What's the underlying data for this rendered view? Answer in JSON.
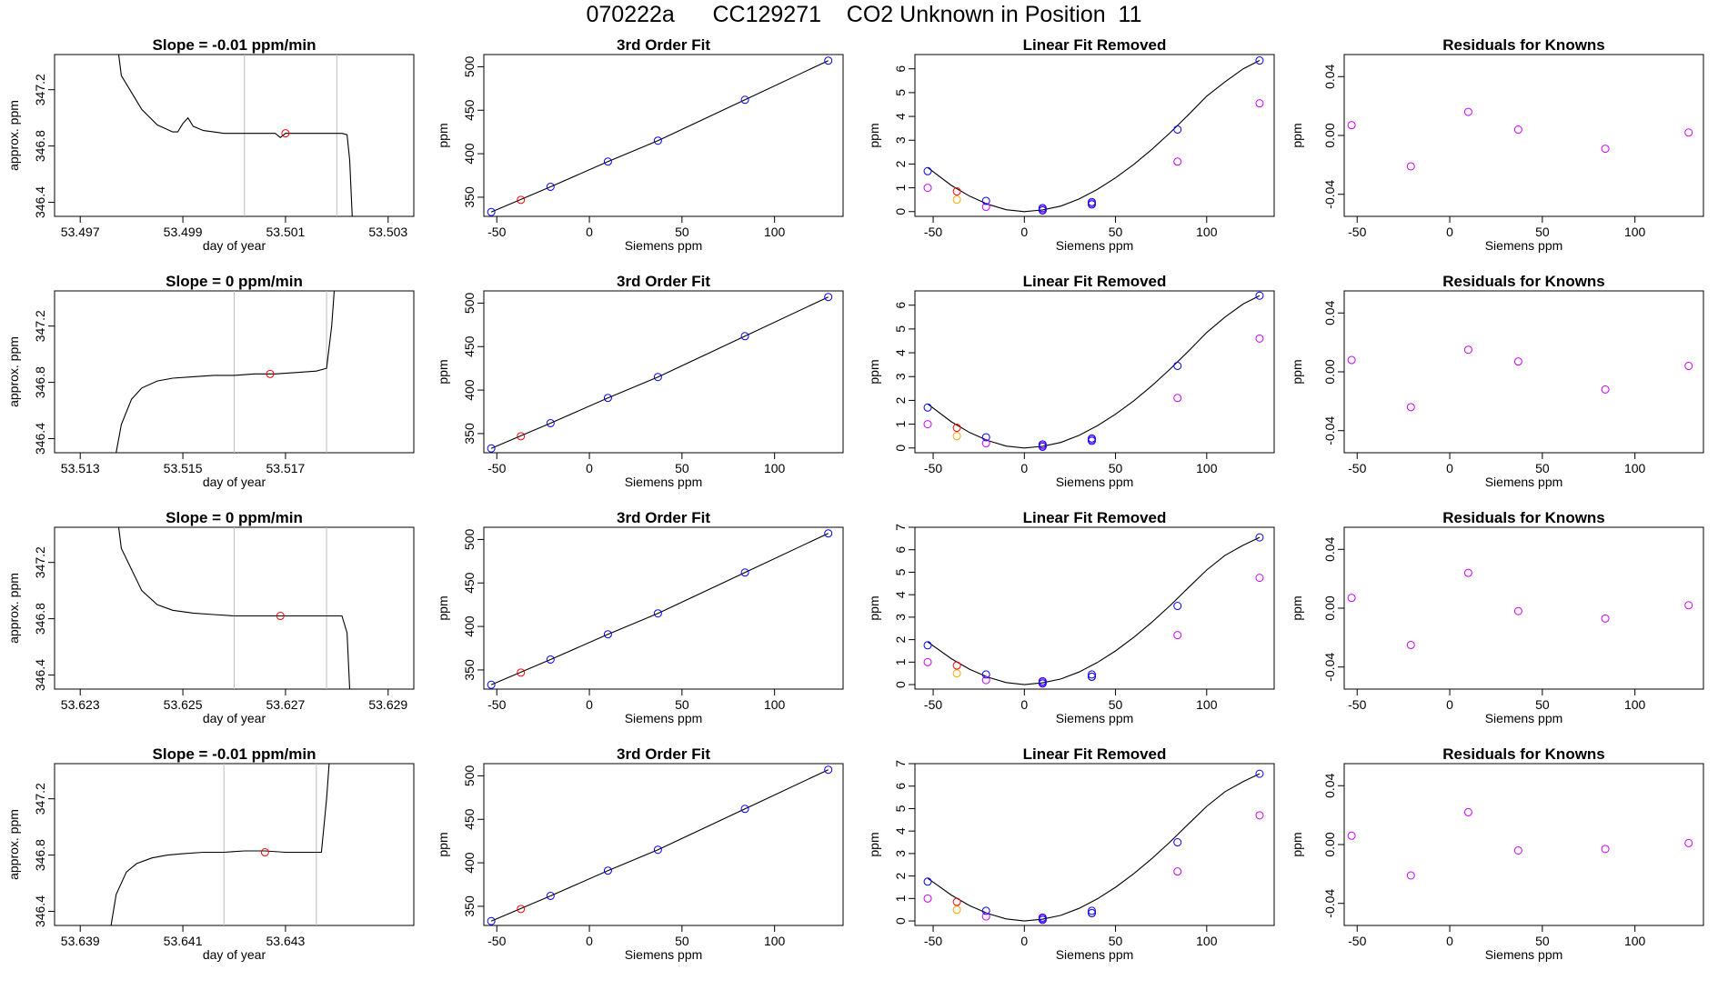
{
  "page": {
    "title": "070222a      CC129271    CO2 Unknown in Position  11"
  },
  "colors": {
    "trace": "#000000",
    "marker_red": "#ff0000",
    "marker_blue": "#0000ff",
    "marker_orange": "#ffa500",
    "marker_magenta": "#cc00ff",
    "window_lines": "#bebebe"
  },
  "chart_data": [
    {
      "type": "line",
      "row": 0,
      "title": "Slope =  -0.01  ppm/min",
      "xlabel": "day of year",
      "ylabel": "approx. ppm",
      "xlim": [
        53.4965,
        53.5035
      ],
      "ylim": [
        346.3,
        347.45
      ],
      "xticks": [
        53.497,
        53.499,
        53.501,
        53.503
      ],
      "yticks": [
        346.4,
        346.8,
        347.2
      ],
      "window": [
        53.5002,
        53.502
      ],
      "series": [
        {
          "x": [
            53.49775,
            53.4978,
            53.4982,
            53.4985,
            53.4988,
            53.4989,
            53.499,
            53.4991,
            53.4992,
            53.4994,
            53.4996,
            53.4998,
            53.5,
            53.5003,
            53.5006,
            53.5008,
            53.5009,
            53.501,
            53.5012,
            53.5015,
            53.5018,
            53.5021,
            53.5022,
            53.50225,
            53.5023
          ],
          "y": [
            347.45,
            347.3,
            347.06,
            346.95,
            346.9,
            346.9,
            346.96,
            347.0,
            346.94,
            346.91,
            346.9,
            346.89,
            346.89,
            346.89,
            346.89,
            346.89,
            346.86,
            346.89,
            346.89,
            346.89,
            346.89,
            346.89,
            346.88,
            346.7,
            346.3
          ]
        }
      ],
      "marker": {
        "x": 53.501,
        "y": 346.89
      }
    },
    {
      "type": "line",
      "row": 1,
      "title": "Slope =  0  ppm/min",
      "xlabel": "day of year",
      "ylabel": "approx. ppm",
      "xlim": [
        53.5125,
        53.5195
      ],
      "ylim": [
        346.3,
        347.45
      ],
      "xticks": [
        53.513,
        53.515,
        53.517
      ],
      "yticks": [
        346.4,
        346.8,
        347.2
      ],
      "window": [
        53.516,
        53.5178
      ],
      "series": [
        {
          "x": [
            53.5137,
            53.5138,
            53.514,
            53.5142,
            53.5145,
            53.5148,
            53.5152,
            53.5156,
            53.516,
            53.5164,
            53.5168,
            53.5172,
            53.5176,
            53.5178,
            53.5179,
            53.51795
          ],
          "y": [
            346.3,
            346.5,
            346.68,
            346.76,
            346.81,
            346.83,
            346.84,
            346.85,
            346.85,
            346.86,
            346.86,
            346.87,
            346.88,
            346.9,
            347.2,
            347.45
          ]
        }
      ],
      "marker": {
        "x": 53.5167,
        "y": 346.86
      }
    },
    {
      "type": "line",
      "row": 2,
      "title": "Slope =  0  ppm/min",
      "xlabel": "day of year",
      "ylabel": "approx. ppm",
      "xlim": [
        53.6225,
        53.6295
      ],
      "ylim": [
        346.3,
        347.45
      ],
      "xticks": [
        53.623,
        53.625,
        53.627,
        53.629
      ],
      "yticks": [
        346.4,
        346.8,
        347.2
      ],
      "window": [
        53.626,
        53.6278
      ],
      "series": [
        {
          "x": [
            53.62375,
            53.6238,
            53.6242,
            53.6245,
            53.6248,
            53.6252,
            53.6256,
            53.626,
            53.6264,
            53.6268,
            53.6272,
            53.6276,
            53.6279,
            53.6281,
            53.6282,
            53.62825
          ],
          "y": [
            347.45,
            347.3,
            347.0,
            346.9,
            346.86,
            346.84,
            346.83,
            346.82,
            346.82,
            346.82,
            346.82,
            346.82,
            346.82,
            346.82,
            346.7,
            346.3
          ]
        }
      ],
      "marker": {
        "x": 53.6269,
        "y": 346.82
      }
    },
    {
      "type": "line",
      "row": 3,
      "title": "Slope =  -0.01  ppm/min",
      "xlabel": "day of year",
      "ylabel": "approx. ppm",
      "xlim": [
        53.6385,
        53.6455
      ],
      "ylim": [
        346.3,
        347.45
      ],
      "xticks": [
        53.639,
        53.641,
        53.643
      ],
      "yticks": [
        346.4,
        346.8,
        347.2
      ],
      "window": [
        53.6418,
        53.6436
      ],
      "series": [
        {
          "x": [
            53.6396,
            53.6397,
            53.6399,
            53.6401,
            53.6404,
            53.6407,
            53.641,
            53.6414,
            53.6418,
            53.6422,
            53.6426,
            53.643,
            53.6434,
            53.6437,
            53.6438,
            53.64385
          ],
          "y": [
            346.3,
            346.52,
            346.68,
            346.74,
            346.78,
            346.8,
            346.81,
            346.82,
            346.82,
            346.83,
            346.83,
            346.82,
            346.82,
            346.82,
            347.2,
            347.45
          ]
        }
      ],
      "marker": {
        "x": 53.6426,
        "y": 346.82
      }
    },
    {
      "type": "scatter",
      "row": 0,
      "title": "3rd Order Fit",
      "xlabel": "Siemens ppm",
      "ylabel": "ppm",
      "xlim": [
        -57,
        137
      ],
      "ylim": [
        328,
        514
      ],
      "xticks": [
        -50,
        0,
        50,
        100
      ],
      "yticks": [
        350,
        400,
        450,
        500
      ],
      "knowns": {
        "x": [
          -53,
          -21,
          10,
          37,
          84,
          129
        ],
        "y": [
          333,
          362,
          391,
          415,
          462,
          507
        ]
      },
      "unknown": {
        "x": [
          -37
        ],
        "y": [
          347
        ]
      }
    },
    {
      "type": "scatter",
      "row": 1,
      "title": "3rd Order Fit",
      "xlabel": "Siemens ppm",
      "ylabel": "ppm",
      "xlim": [
        -57,
        137
      ],
      "ylim": [
        328,
        514
      ],
      "xticks": [
        -50,
        0,
        50,
        100
      ],
      "yticks": [
        350,
        400,
        450,
        500
      ],
      "knowns": {
        "x": [
          -53,
          -21,
          10,
          37,
          84,
          129
        ],
        "y": [
          333,
          362,
          391,
          415,
          462,
          507
        ]
      },
      "unknown": {
        "x": [
          -37
        ],
        "y": [
          347
        ]
      }
    },
    {
      "type": "scatter",
      "row": 2,
      "title": "3rd Order Fit",
      "xlabel": "Siemens ppm",
      "ylabel": "ppm",
      "xlim": [
        -57,
        137
      ],
      "ylim": [
        328,
        514
      ],
      "xticks": [
        -50,
        0,
        50,
        100
      ],
      "yticks": [
        350,
        400,
        450,
        500
      ],
      "knowns": {
        "x": [
          -53,
          -21,
          10,
          37,
          84,
          129
        ],
        "y": [
          333,
          362,
          391,
          415,
          462,
          507
        ]
      },
      "unknown": {
        "x": [
          -37
        ],
        "y": [
          347
        ]
      }
    },
    {
      "type": "scatter",
      "row": 3,
      "title": "3rd Order Fit",
      "xlabel": "Siemens ppm",
      "ylabel": "ppm",
      "xlim": [
        -57,
        137
      ],
      "ylim": [
        328,
        514
      ],
      "xticks": [
        -50,
        0,
        50,
        100
      ],
      "yticks": [
        350,
        400,
        450,
        500
      ],
      "knowns": {
        "x": [
          -53,
          -21,
          10,
          37,
          84,
          129
        ],
        "y": [
          333,
          362,
          391,
          415,
          462,
          507
        ]
      },
      "unknown": {
        "x": [
          -37
        ],
        "y": [
          347
        ]
      }
    },
    {
      "type": "scatter",
      "row": 0,
      "title": "Linear Fit Removed",
      "xlabel": "Siemens ppm",
      "ylabel": "ppm",
      "xlim": [
        -60,
        137
      ],
      "ylim": [
        -0.2,
        6.6
      ],
      "xticks": [
        -50,
        0,
        50,
        100
      ],
      "yticks": [
        0,
        1,
        2,
        3,
        4,
        5,
        6
      ],
      "blue": {
        "x": [
          -53,
          -21,
          10,
          10,
          37,
          37,
          84,
          129
        ],
        "y": [
          1.7,
          0.45,
          0.15,
          0.05,
          0.4,
          0.3,
          3.45,
          6.35
        ]
      },
      "magenta": {
        "x": [
          -53,
          -21,
          10,
          37,
          84,
          129
        ],
        "y": [
          1.0,
          0.2,
          0.1,
          0.35,
          2.1,
          4.55
        ]
      },
      "red": {
        "x": [
          -37
        ],
        "y": [
          0.85
        ]
      },
      "orange": {
        "x": [
          -37
        ],
        "y": [
          0.5
        ]
      },
      "curve": {
        "x": [
          -53,
          -40,
          -30,
          -20,
          -10,
          0,
          10,
          20,
          30,
          40,
          50,
          60,
          70,
          80,
          90,
          100,
          110,
          120,
          129
        ],
        "y": [
          1.85,
          1.1,
          0.65,
          0.31,
          0.08,
          0.0,
          0.07,
          0.23,
          0.53,
          0.93,
          1.42,
          1.98,
          2.62,
          3.32,
          4.07,
          4.85,
          5.45,
          6.0,
          6.35
        ]
      }
    },
    {
      "type": "scatter",
      "row": 1,
      "title": "Linear Fit Removed",
      "xlabel": "Siemens ppm",
      "ylabel": "ppm",
      "xlim": [
        -60,
        137
      ],
      "ylim": [
        -0.2,
        6.6
      ],
      "xticks": [
        -50,
        0,
        50,
        100
      ],
      "yticks": [
        0,
        1,
        2,
        3,
        4,
        5,
        6
      ],
      "blue": {
        "x": [
          -53,
          -21,
          10,
          10,
          37,
          37,
          84,
          129
        ],
        "y": [
          1.7,
          0.45,
          0.15,
          0.05,
          0.4,
          0.3,
          3.45,
          6.4
        ]
      },
      "magenta": {
        "x": [
          -53,
          -21,
          10,
          37,
          84,
          129
        ],
        "y": [
          1.0,
          0.2,
          0.1,
          0.35,
          2.1,
          4.6
        ]
      },
      "red": {
        "x": [
          -37
        ],
        "y": [
          0.85
        ]
      },
      "orange": {
        "x": [
          -37
        ],
        "y": [
          0.5
        ]
      },
      "curve": {
        "x": [
          -53,
          -40,
          -30,
          -20,
          -10,
          0,
          10,
          20,
          30,
          40,
          50,
          60,
          70,
          80,
          90,
          100,
          110,
          120,
          129
        ],
        "y": [
          1.85,
          1.1,
          0.65,
          0.31,
          0.08,
          0.0,
          0.07,
          0.23,
          0.53,
          0.93,
          1.42,
          1.98,
          2.62,
          3.32,
          4.07,
          4.85,
          5.5,
          6.05,
          6.4
        ]
      }
    },
    {
      "type": "scatter",
      "row": 2,
      "title": "Linear Fit Removed",
      "xlabel": "Siemens ppm",
      "ylabel": "ppm",
      "xlim": [
        -60,
        137
      ],
      "ylim": [
        -0.2,
        7.0
      ],
      "xticks": [
        -50,
        0,
        50,
        100
      ],
      "yticks": [
        0,
        1,
        2,
        3,
        4,
        5,
        6,
        7
      ],
      "blue": {
        "x": [
          -53,
          -21,
          10,
          10,
          37,
          37,
          84,
          129
        ],
        "y": [
          1.75,
          0.45,
          0.15,
          0.05,
          0.45,
          0.35,
          3.5,
          6.55
        ]
      },
      "magenta": {
        "x": [
          -53,
          -21,
          10,
          37,
          84,
          129
        ],
        "y": [
          1.0,
          0.2,
          0.1,
          0.35,
          2.2,
          4.75
        ]
      },
      "red": {
        "x": [
          -37
        ],
        "y": [
          0.85
        ]
      },
      "orange": {
        "x": [
          -37
        ],
        "y": [
          0.5
        ]
      },
      "curve": {
        "x": [
          -53,
          -40,
          -30,
          -20,
          -10,
          0,
          10,
          20,
          30,
          40,
          50,
          60,
          70,
          80,
          90,
          100,
          110,
          120,
          129
        ],
        "y": [
          1.9,
          1.15,
          0.68,
          0.33,
          0.09,
          0.0,
          0.08,
          0.25,
          0.56,
          0.98,
          1.5,
          2.1,
          2.78,
          3.52,
          4.32,
          5.1,
          5.75,
          6.2,
          6.55
        ]
      }
    },
    {
      "type": "scatter",
      "row": 3,
      "title": "Linear Fit Removed",
      "xlabel": "Siemens ppm",
      "ylabel": "ppm",
      "xlim": [
        -60,
        137
      ],
      "ylim": [
        -0.2,
        7.0
      ],
      "xticks": [
        -50,
        0,
        50,
        100
      ],
      "yticks": [
        0,
        1,
        2,
        3,
        4,
        5,
        6,
        7
      ],
      "blue": {
        "x": [
          -53,
          -21,
          10,
          10,
          37,
          37,
          84,
          129
        ],
        "y": [
          1.75,
          0.45,
          0.15,
          0.05,
          0.45,
          0.35,
          3.5,
          6.55
        ]
      },
      "magenta": {
        "x": [
          -53,
          -21,
          10,
          37,
          84,
          129
        ],
        "y": [
          1.0,
          0.2,
          0.1,
          0.35,
          2.2,
          4.7
        ]
      },
      "red": {
        "x": [
          -37
        ],
        "y": [
          0.85
        ]
      },
      "orange": {
        "x": [
          -37
        ],
        "y": [
          0.5
        ]
      },
      "curve": {
        "x": [
          -53,
          -40,
          -30,
          -20,
          -10,
          0,
          10,
          20,
          30,
          40,
          50,
          60,
          70,
          80,
          90,
          100,
          110,
          120,
          129
        ],
        "y": [
          1.9,
          1.15,
          0.68,
          0.33,
          0.09,
          0.0,
          0.08,
          0.25,
          0.56,
          0.98,
          1.5,
          2.1,
          2.78,
          3.52,
          4.32,
          5.1,
          5.75,
          6.2,
          6.55
        ]
      }
    },
    {
      "type": "scatter",
      "row": 0,
      "title": "Residuals for Knowns",
      "xlabel": "Siemens ppm",
      "ylabel": "ppm",
      "xlim": [
        -57,
        137
      ],
      "ylim": [
        -0.055,
        0.055
      ],
      "xticks": [
        -50,
        0,
        50,
        100
      ],
      "yticks": [
        -0.04,
        0.0,
        0.04
      ],
      "points": {
        "x": [
          -53,
          -21,
          10,
          37,
          84,
          129
        ],
        "y": [
          0.007,
          -0.021,
          0.016,
          0.004,
          -0.009,
          0.002
        ]
      }
    },
    {
      "type": "scatter",
      "row": 1,
      "title": "Residuals for Knowns",
      "xlabel": "Siemens ppm",
      "ylabel": "ppm",
      "xlim": [
        -57,
        137
      ],
      "ylim": [
        -0.055,
        0.055
      ],
      "xticks": [
        -50,
        0,
        50,
        100
      ],
      "yticks": [
        -0.04,
        0.0,
        0.04
      ],
      "points": {
        "x": [
          -53,
          -21,
          10,
          37,
          84,
          129
        ],
        "y": [
          0.008,
          -0.024,
          0.015,
          0.007,
          -0.012,
          0.004
        ]
      }
    },
    {
      "type": "scatter",
      "row": 2,
      "title": "Residuals for Knowns",
      "xlabel": "Siemens ppm",
      "ylabel": "ppm",
      "xlim": [
        -57,
        137
      ],
      "ylim": [
        -0.055,
        0.055
      ],
      "xticks": [
        -50,
        0,
        50,
        100
      ],
      "yticks": [
        -0.04,
        0.0,
        0.04
      ],
      "points": {
        "x": [
          -53,
          -21,
          10,
          37,
          84,
          129
        ],
        "y": [
          0.007,
          -0.025,
          0.024,
          -0.002,
          -0.007,
          0.002
        ]
      }
    },
    {
      "type": "scatter",
      "row": 3,
      "title": "Residuals for Knowns",
      "xlabel": "Siemens ppm",
      "ylabel": "ppm",
      "xlim": [
        -57,
        137
      ],
      "ylim": [
        -0.055,
        0.055
      ],
      "xticks": [
        -50,
        0,
        50,
        100
      ],
      "yticks": [
        -0.04,
        0.0,
        0.04
      ],
      "points": {
        "x": [
          -53,
          -21,
          10,
          37,
          84,
          129
        ],
        "y": [
          0.006,
          -0.021,
          0.022,
          -0.004,
          -0.003,
          0.001
        ]
      }
    }
  ]
}
